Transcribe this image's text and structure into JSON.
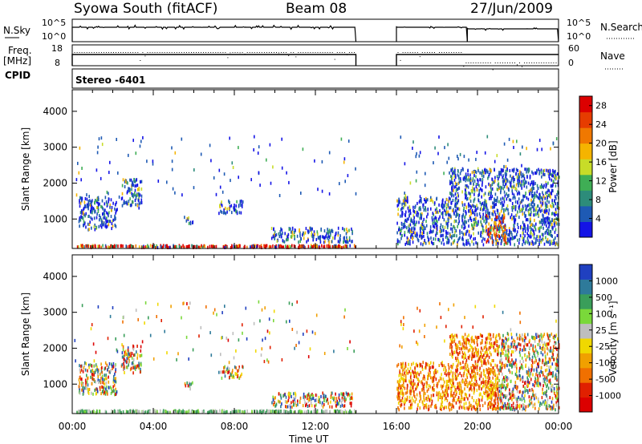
{
  "header": {
    "title": "Syowa South (fitACF)",
    "beam": "Beam 08",
    "date": "27/Jun/2009"
  },
  "top_panels": {
    "nsky_label": "N.Sky",
    "nsky_ticks": [
      "10^5",
      "10^0"
    ],
    "nsearch_label": "N.Search",
    "nsearch_ticks": [
      "10^5",
      "10^0"
    ],
    "freq_label_1": "Freq.",
    "freq_label_2": "[MHz]",
    "freq_ticks": [
      "18",
      "8"
    ],
    "nave_label": "Nave",
    "nave_ticks": [
      "60",
      "0"
    ],
    "cpid_label": "CPID",
    "cpid_value": "Stereo -6401"
  },
  "colors": {
    "power_scale": [
      "#1414e6",
      "#1e5ab4",
      "#2d8c7a",
      "#3fae55",
      "#c8dc28",
      "#f5b400",
      "#f07800",
      "#e63c00",
      "#dc0000"
    ],
    "velocity_scale": [
      "#2040c0",
      "#2e7a9a",
      "#3a9e5a",
      "#7ad83a",
      "#bebebe",
      "#f0d800",
      "#f0a000",
      "#f07000",
      "#e02000",
      "#dc0000"
    ]
  },
  "chart_data": [
    {
      "type": "heatmap",
      "name": "power",
      "ylabel": "Slant Range [km]",
      "xlabel": "Time UT",
      "x_ticks": [
        "00:00",
        "04:00",
        "08:00",
        "12:00",
        "16:00",
        "20:00",
        "00:00"
      ],
      "x_range_hours": [
        0,
        24
      ],
      "y_ticks": [
        "1000",
        "2000",
        "3000",
        "4000"
      ],
      "y_range_km": [
        180,
        4600
      ],
      "data_gap_hours": [
        14.0,
        16.0
      ],
      "colorbar_label": "Power [dB]",
      "colorbar_ticks": [
        "4",
        "8",
        "12",
        "16",
        "20",
        "24",
        "28"
      ],
      "colorbar_range": [
        0,
        30
      ]
    },
    {
      "type": "heatmap",
      "name": "velocity",
      "ylabel": "Slant Range [km]",
      "xlabel": "Time UT",
      "x_ticks": [
        "00:00",
        "04:00",
        "08:00",
        "12:00",
        "16:00",
        "20:00",
        "00:00"
      ],
      "x_range_hours": [
        0,
        24
      ],
      "y_ticks": [
        "1000",
        "2000",
        "3000",
        "4000"
      ],
      "y_range_km": [
        180,
        4600
      ],
      "data_gap_hours": [
        14.0,
        16.0
      ],
      "colorbar_label": "Velocity [m s⁻¹]",
      "colorbar_ticks": [
        "1000",
        "500",
        "100",
        "25",
        "-25",
        "-100",
        "-500",
        "-1000"
      ]
    }
  ],
  "scatter_regions": [
    {
      "t0": 0.2,
      "t1": 14.0,
      "r0": 180,
      "r1": 260,
      "kind": "ground"
    },
    {
      "t0": 0.3,
      "t1": 2.2,
      "r0": 700,
      "r1": 1600,
      "kind": "patch"
    },
    {
      "t0": 2.4,
      "t1": 3.4,
      "r0": 1300,
      "r1": 2100,
      "kind": "patch"
    },
    {
      "t0": 5.5,
      "t1": 6.0,
      "r0": 850,
      "r1": 1050,
      "kind": "patch"
    },
    {
      "t0": 7.2,
      "t1": 8.4,
      "r0": 1150,
      "r1": 1500,
      "kind": "patch"
    },
    {
      "t0": 9.8,
      "t1": 13.8,
      "r0": 350,
      "r1": 750,
      "kind": "patch"
    },
    {
      "t0": 16.0,
      "t1": 18.6,
      "r0": 280,
      "r1": 1600,
      "kind": "patch"
    },
    {
      "t0": 18.6,
      "t1": 24.0,
      "r0": 280,
      "r1": 2400,
      "kind": "patch"
    },
    {
      "t0": 20.4,
      "t1": 21.4,
      "r0": 300,
      "r1": 1100,
      "kind": "strong"
    },
    {
      "t0": 0.0,
      "t1": 24.0,
      "r0": 1600,
      "r1": 3300,
      "kind": "sparse"
    }
  ]
}
